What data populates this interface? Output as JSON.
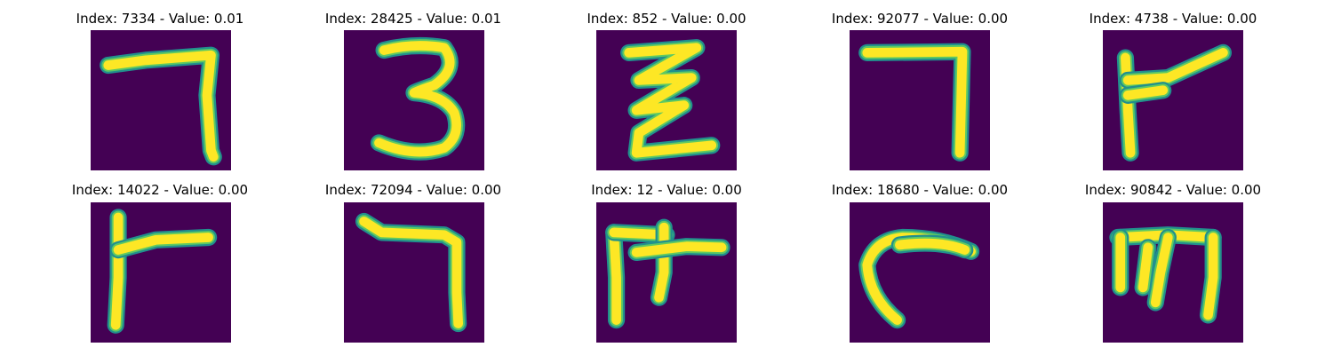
{
  "colormap": {
    "background": "#440154",
    "edge": "#21908d",
    "mid": "#5ec962",
    "core": "#fde725"
  },
  "images": [
    {
      "title": "Index: 7334 - Value: 0.01",
      "glyph": "seven"
    },
    {
      "title": "Index: 28425 - Value: 0.01",
      "glyph": "three"
    },
    {
      "title": "Index: 852 - Value: 0.00",
      "glyph": "zigzag"
    },
    {
      "title": "Index: 92077 - Value: 0.00",
      "glyph": "seven"
    },
    {
      "title": "Index: 4738 - Value: 0.00",
      "glyph": "flag"
    },
    {
      "title": "Index: 14022 - Value: 0.00",
      "glyph": "flag"
    },
    {
      "title": "Index: 72094 - Value: 0.00",
      "glyph": "seven-hook"
    },
    {
      "title": "Index: 12 - Value: 0.00",
      "glyph": "fork"
    },
    {
      "title": "Index: 18680 - Value: 0.00",
      "glyph": "hook"
    },
    {
      "title": "Index: 90842 - Value: 0.00",
      "glyph": "m"
    }
  ]
}
